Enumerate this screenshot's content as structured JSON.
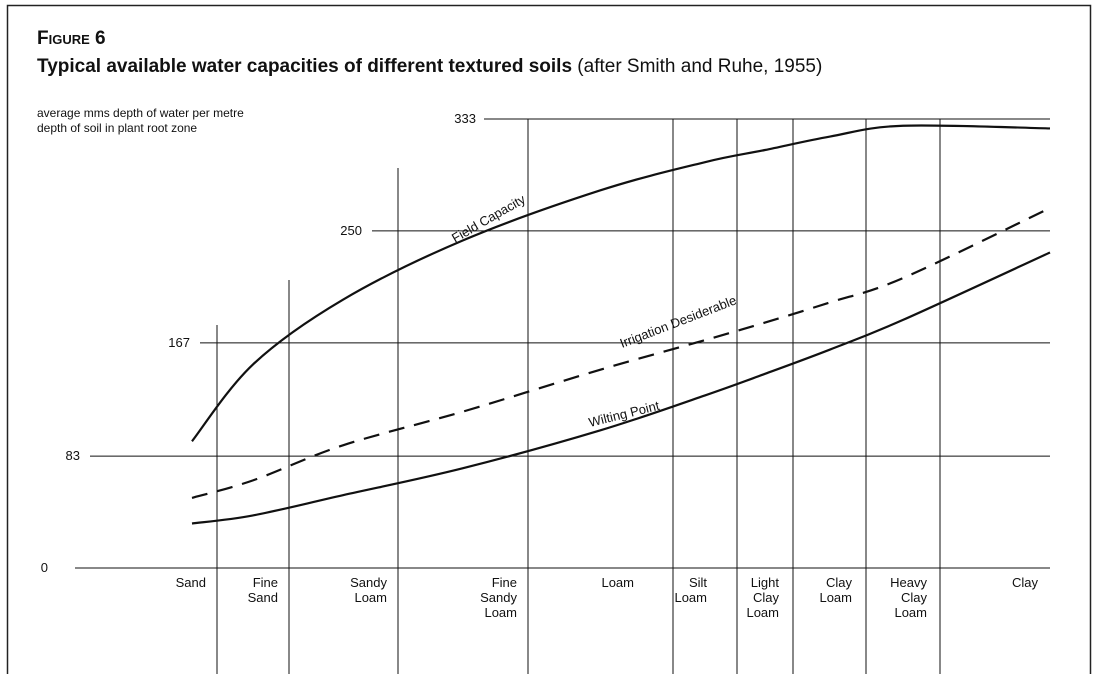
{
  "chart_data": {
    "type": "line",
    "title": "Figure 6",
    "subtitle": "Typical available water capacities of different textured soils",
    "source": "(after Smith and Ruhe, 1955)",
    "y_label": [
      "average mms depth of water per metre",
      "depth of soil in plant root zone"
    ],
    "categories": [
      "Sand",
      "Fine\nSand",
      "Sandy\nLoam",
      "Fine\nSandy\nLoam",
      "Loam",
      "Silt\nLoam",
      "Light\nClay\nLoam",
      "Clay\nLoam",
      "Heavy\nClay\nLoam",
      "Clay"
    ],
    "series": [
      {
        "name": "Field Capacity",
        "color": "#111111",
        "style": "solid",
        "values": [
          94,
          151,
          199,
          243,
          280,
          301,
          310,
          320,
          328,
          326
        ]
      },
      {
        "name": "Irrigation Desiderable",
        "color": "#111111",
        "style": "dashed",
        "values": [
          52,
          65,
          91,
          116,
          147,
          169,
          182,
          197,
          215,
          267
        ]
      },
      {
        "name": "Wilting Point",
        "color": "#111111",
        "style": "solid",
        "values": [
          33,
          39,
          54,
          74,
          102,
          128,
          144,
          162,
          184,
          234
        ]
      }
    ],
    "ylim": [
      0,
      333
    ],
    "yticks": [
      0,
      83,
      167,
      250,
      333
    ],
    "grid": true
  }
}
